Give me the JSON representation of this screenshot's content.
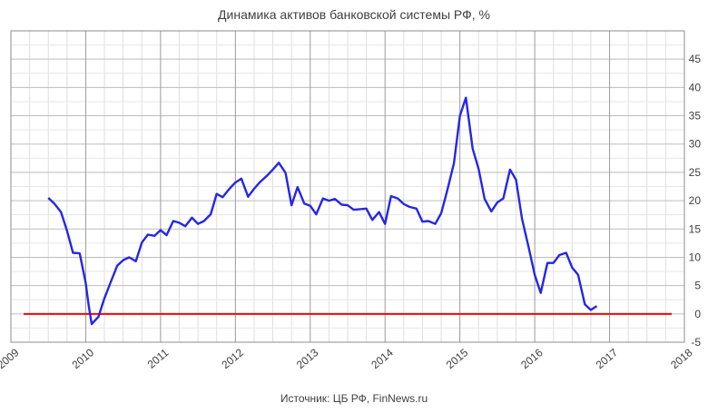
{
  "chart_data": {
    "type": "line",
    "title": "Динамика активов банковской системы РФ, %",
    "source": "Источник: ЦБ РФ, FinNews.ru",
    "xlabel": "",
    "ylabel": "",
    "xlim": [
      2009,
      2018
    ],
    "ylim": [
      -5,
      50
    ],
    "x_ticks": [
      "2009",
      "2010",
      "2011",
      "2012",
      "2013",
      "2014",
      "2015",
      "2016",
      "2017",
      "2018"
    ],
    "y_ticks": [
      "-5",
      "0",
      "5",
      "10",
      "15",
      "20",
      "25",
      "30",
      "35",
      "40",
      "45"
    ],
    "grid": true,
    "legend": "none",
    "colors": {
      "series": "#2626e8",
      "zero_line": "#ff0000"
    },
    "series": [
      {
        "x": [
          2009.5,
          2009.58,
          2009.67,
          2009.75,
          2009.83,
          2009.92,
          2010.0,
          2010.04,
          2010.08,
          2010.17,
          2010.25,
          2010.33,
          2010.42,
          2010.5,
          2010.58,
          2010.67,
          2010.75,
          2010.83,
          2010.92,
          2011.0,
          2011.08,
          2011.17,
          2011.25,
          2011.33,
          2011.42,
          2011.5,
          2011.58,
          2011.67,
          2011.75,
          2011.83,
          2011.92,
          2012.0,
          2012.08,
          2012.17,
          2012.25,
          2012.33,
          2012.42,
          2012.5,
          2012.58,
          2012.67,
          2012.75,
          2012.83,
          2012.92,
          2013.0,
          2013.08,
          2013.17,
          2013.25,
          2013.33,
          2013.42,
          2013.5,
          2013.58,
          2013.67,
          2013.75,
          2013.83,
          2013.92,
          2014.0,
          2014.08,
          2014.17,
          2014.25,
          2014.33,
          2014.42,
          2014.5,
          2014.58,
          2014.67,
          2014.75,
          2014.83,
          2014.92,
          2015.0,
          2015.08,
          2015.17,
          2015.25,
          2015.33,
          2015.42,
          2015.5,
          2015.58,
          2015.67,
          2015.75,
          2015.83,
          2015.92,
          2016.0,
          2016.08,
          2016.17,
          2016.25,
          2016.33,
          2016.42,
          2016.5,
          2016.58,
          2016.67,
          2016.75,
          2016.83,
          2016.92
        ],
        "y": [
          20.5,
          19.5,
          18,
          14.7,
          10.8,
          10.7,
          5.5,
          1.5,
          -1.8,
          -0.5,
          2.8,
          5.5,
          8.5,
          9.5,
          10.0,
          9.3,
          12.6,
          14.0,
          13.8,
          14.8,
          13.9,
          16.4,
          16.1,
          15.5,
          17.0,
          15.9,
          16.4,
          17.6,
          21.2,
          20.6,
          22.1,
          23.2,
          23.9,
          20.7,
          22.1,
          23.3,
          24.4,
          25.5,
          26.7,
          24.9,
          19.2,
          22.4,
          19.5,
          19.1,
          17.6,
          20.4,
          20.0,
          20.3,
          19.3,
          19.2,
          18.4,
          18.5,
          18.6,
          16.6,
          18.0,
          15.9,
          20.8,
          20.4,
          19.4,
          18.9,
          18.6,
          16.3,
          16.4,
          15.9,
          17.8,
          21.8,
          26.6,
          35.0,
          38.2,
          29.2,
          25.6,
          20.3,
          18.1,
          19.7,
          20.4,
          25.5,
          23.7,
          16.8,
          11.7,
          6.9,
          3.7,
          9.0,
          9.0,
          10.4,
          10.8,
          8.2,
          6.9,
          1.7,
          0.7,
          1.4,
          null
        ]
      }
    ],
    "reference_line": {
      "y": 0,
      "x_from": 2009.17,
      "x_to": 2017.83
    }
  }
}
